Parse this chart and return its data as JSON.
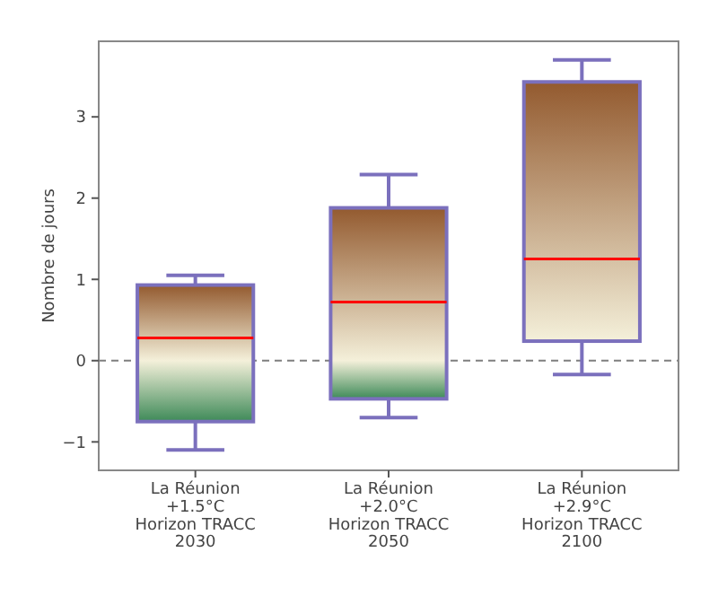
{
  "chart_data": {
    "type": "box",
    "ylabel": "Nombre de jours",
    "categories": [
      "La Réunion\n+1.5°C\nHorizon TRACC\n2030",
      "La Réunion\n+2.0°C\nHorizon TRACC\n2050",
      "La Réunion\n+2.9°C\nHorizon TRACC\n2100"
    ],
    "boxes": [
      {
        "low": -1.1,
        "q1": -0.75,
        "median": 0.28,
        "q3": 0.93,
        "high": 1.05
      },
      {
        "low": -0.7,
        "q1": -0.47,
        "median": 0.72,
        "q3": 1.88,
        "high": 2.29
      },
      {
        "low": -0.17,
        "q1": 0.24,
        "median": 1.25,
        "q3": 3.43,
        "high": 3.7
      }
    ],
    "color": "#7b70bd",
    "ylim": [
      -1.35,
      3.93
    ],
    "yticks": [
      {
        "value": -1,
        "label": "−1"
      },
      0,
      1,
      2,
      3
    ],
    "ref_lines": [
      {
        "axis": "y",
        "value": 0,
        "color": "#7f7f7f",
        "line_style": "dashed"
      }
    ],
    "grid": false
  }
}
